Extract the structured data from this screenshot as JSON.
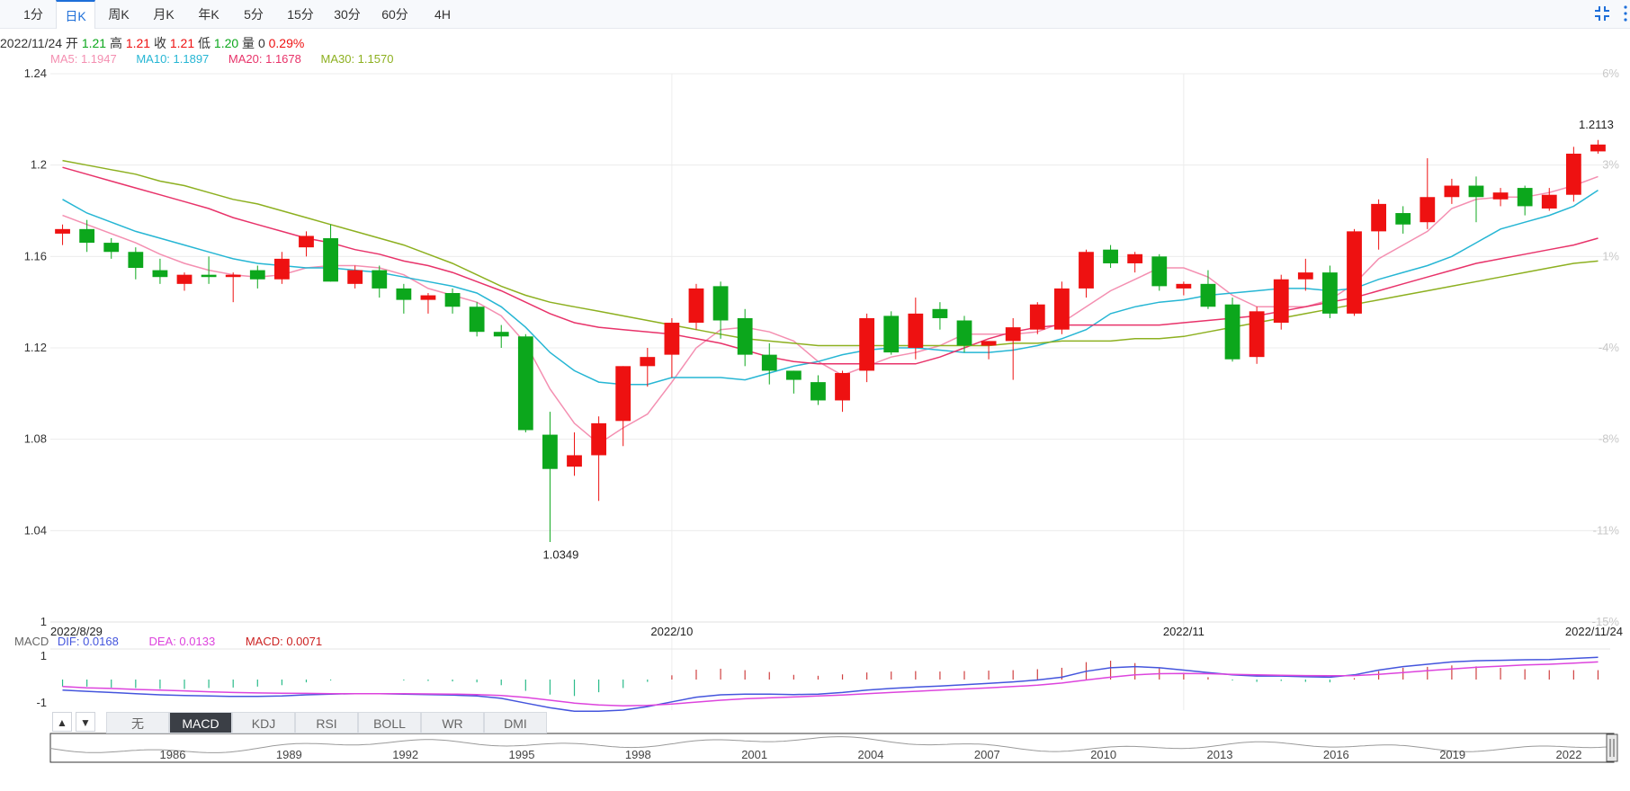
{
  "tabs": [
    {
      "label": "1分",
      "active": false
    },
    {
      "label": "日K",
      "active": true
    },
    {
      "label": "周K",
      "active": false
    },
    {
      "label": "月K",
      "active": false
    },
    {
      "label": "年K",
      "active": false
    },
    {
      "label": "5分",
      "active": false
    },
    {
      "label": "15分",
      "active": false
    },
    {
      "label": "30分",
      "active": false
    },
    {
      "label": "60分",
      "active": false
    },
    {
      "label": "4H",
      "active": false
    }
  ],
  "toolbar": {
    "fullscreen_icon": "compress-icon",
    "more_icon": "more-vertical-icon"
  },
  "info": {
    "date": "2022/11/24",
    "open_label": "开",
    "open": "1.21",
    "high_label": "高",
    "high": "1.21",
    "close_label": "收",
    "close": "1.21",
    "low_label": "低",
    "low": "1.20",
    "vol_label": "量",
    "vol": "0",
    "change": "0.29%"
  },
  "ma": [
    {
      "label": "MA5: 1.1947",
      "color": "#f48fb1"
    },
    {
      "label": "MA10: 1.1897",
      "color": "#26b6d4"
    },
    {
      "label": "MA20: 1.1678",
      "color": "#e8336a"
    },
    {
      "label": "MA30: 1.1570",
      "color": "#8db020"
    }
  ],
  "macd_legend": {
    "name": "MACD",
    "dif": "DIF: 0.0168",
    "dea": "DEA: 0.0133",
    "macd": "MACD: 0.0071"
  },
  "indicator_tabs": [
    {
      "label": "无",
      "active": false
    },
    {
      "label": "MACD",
      "active": true
    },
    {
      "label": "KDJ",
      "active": false
    },
    {
      "label": "RSI",
      "active": false
    },
    {
      "label": "BOLL",
      "active": false
    },
    {
      "label": "WR",
      "active": false
    },
    {
      "label": "DMI",
      "active": false
    }
  ],
  "arrows": {
    "up": "▲",
    "down": "▼"
  },
  "colors": {
    "up": "#ee1111",
    "down": "#0ca71c",
    "grid": "#ececec",
    "dif": "#4455dd",
    "dea": "#dd44dd"
  },
  "chart_data": [
    {
      "type": "candlestick",
      "ylim": [
        1.0,
        1.24
      ],
      "y_ticks": [
        "1.24",
        "1.2",
        "1.16",
        "1.12",
        "1.08",
        "1.04",
        "1"
      ],
      "y_tick_values": [
        1.24,
        1.2,
        1.16,
        1.12,
        1.08,
        1.04,
        1.0
      ],
      "pct_ticks": [
        "6%",
        "3%",
        "1%",
        "-4%",
        "-8%",
        "-11%",
        "-15%"
      ],
      "x_labels": [
        {
          "label": "2022/8/29",
          "index": 0
        },
        {
          "label": "2022/10",
          "index": 25
        },
        {
          "label": "2022/11",
          "index": 46
        },
        {
          "label": "2022/11/24",
          "index": 63
        }
      ],
      "annotations": [
        {
          "label": "1.0349",
          "index": 20,
          "value": 1.0349
        },
        {
          "label": "1.2113",
          "index": 63,
          "value": 1.2113
        }
      ],
      "ohlc": [
        [
          1.17,
          1.174,
          1.165,
          1.172
        ],
        [
          1.172,
          1.176,
          1.162,
          1.166
        ],
        [
          1.166,
          1.168,
          1.159,
          1.162
        ],
        [
          1.162,
          1.164,
          1.15,
          1.155
        ],
        [
          1.154,
          1.159,
          1.148,
          1.151
        ],
        [
          1.148,
          1.153,
          1.145,
          1.152
        ],
        [
          1.152,
          1.16,
          1.148,
          1.151
        ],
        [
          1.151,
          1.153,
          1.14,
          1.152
        ],
        [
          1.154,
          1.156,
          1.146,
          1.15
        ],
        [
          1.15,
          1.162,
          1.148,
          1.159
        ],
        [
          1.164,
          1.171,
          1.16,
          1.169
        ],
        [
          1.168,
          1.174,
          1.149,
          1.149
        ],
        [
          1.148,
          1.156,
          1.146,
          1.154
        ],
        [
          1.154,
          1.156,
          1.142,
          1.146
        ],
        [
          1.146,
          1.148,
          1.135,
          1.141
        ],
        [
          1.141,
          1.144,
          1.135,
          1.143
        ],
        [
          1.144,
          1.146,
          1.135,
          1.138
        ],
        [
          1.138,
          1.14,
          1.125,
          1.127
        ],
        [
          1.127,
          1.13,
          1.12,
          1.125
        ],
        [
          1.125,
          1.126,
          1.083,
          1.084
        ],
        [
          1.082,
          1.092,
          1.035,
          1.067
        ],
        [
          1.068,
          1.083,
          1.064,
          1.073
        ],
        [
          1.073,
          1.09,
          1.053,
          1.087
        ],
        [
          1.088,
          1.112,
          1.077,
          1.112
        ],
        [
          1.112,
          1.12,
          1.103,
          1.116
        ],
        [
          1.117,
          1.133,
          1.107,
          1.131
        ],
        [
          1.131,
          1.148,
          1.128,
          1.146
        ],
        [
          1.147,
          1.149,
          1.124,
          1.132
        ],
        [
          1.133,
          1.137,
          1.112,
          1.117
        ],
        [
          1.117,
          1.122,
          1.104,
          1.11
        ],
        [
          1.11,
          1.11,
          1.1,
          1.106
        ],
        [
          1.105,
          1.108,
          1.095,
          1.097
        ],
        [
          1.097,
          1.11,
          1.092,
          1.109
        ],
        [
          1.11,
          1.135,
          1.105,
          1.133
        ],
        [
          1.134,
          1.136,
          1.117,
          1.118
        ],
        [
          1.12,
          1.142,
          1.115,
          1.135
        ],
        [
          1.137,
          1.14,
          1.128,
          1.133
        ],
        [
          1.132,
          1.134,
          1.118,
          1.121
        ],
        [
          1.121,
          1.123,
          1.115,
          1.123
        ],
        [
          1.123,
          1.133,
          1.106,
          1.129
        ],
        [
          1.128,
          1.14,
          1.126,
          1.139
        ],
        [
          1.128,
          1.149,
          1.126,
          1.146
        ],
        [
          1.146,
          1.163,
          1.142,
          1.162
        ],
        [
          1.163,
          1.165,
          1.155,
          1.157
        ],
        [
          1.157,
          1.162,
          1.153,
          1.161
        ],
        [
          1.16,
          1.161,
          1.145,
          1.147
        ],
        [
          1.146,
          1.149,
          1.143,
          1.148
        ],
        [
          1.148,
          1.154,
          1.137,
          1.138
        ],
        [
          1.139,
          1.142,
          1.114,
          1.115
        ],
        [
          1.116,
          1.138,
          1.113,
          1.136
        ],
        [
          1.131,
          1.152,
          1.128,
          1.15
        ],
        [
          1.15,
          1.159,
          1.145,
          1.153
        ],
        [
          1.153,
          1.156,
          1.133,
          1.135
        ],
        [
          1.135,
          1.172,
          1.134,
          1.171
        ],
        [
          1.171,
          1.185,
          1.163,
          1.183
        ],
        [
          1.179,
          1.182,
          1.17,
          1.174
        ],
        [
          1.175,
          1.203,
          1.172,
          1.186
        ],
        [
          1.186,
          1.194,
          1.183,
          1.191
        ],
        [
          1.191,
          1.195,
          1.175,
          1.186
        ],
        [
          1.185,
          1.19,
          1.182,
          1.188
        ],
        [
          1.19,
          1.191,
          1.178,
          1.182
        ],
        [
          1.181,
          1.19,
          1.18,
          1.187
        ],
        [
          1.187,
          1.208,
          1.184,
          1.205
        ],
        [
          1.206,
          1.211,
          1.205,
          1.209
        ]
      ],
      "series": [
        {
          "name": "MA5",
          "values": [
            1.178,
            1.174,
            1.17,
            1.166,
            1.161,
            1.157,
            1.154,
            1.152,
            1.151,
            1.152,
            1.155,
            1.156,
            1.156,
            1.155,
            1.152,
            1.146,
            1.143,
            1.14,
            1.134,
            1.122,
            1.102,
            1.087,
            1.078,
            1.085,
            1.091,
            1.105,
            1.12,
            1.128,
            1.129,
            1.127,
            1.123,
            1.114,
            1.108,
            1.112,
            1.116,
            1.118,
            1.121,
            1.126,
            1.126,
            1.126,
            1.127,
            1.131,
            1.138,
            1.145,
            1.15,
            1.155,
            1.155,
            1.151,
            1.143,
            1.138,
            1.138,
            1.138,
            1.141,
            1.148,
            1.159,
            1.165,
            1.171,
            1.181,
            1.185,
            1.186,
            1.186,
            1.188,
            1.191,
            1.195
          ]
        },
        {
          "name": "MA10",
          "values": [
            1.185,
            1.179,
            1.175,
            1.171,
            1.168,
            1.165,
            1.162,
            1.159,
            1.157,
            1.156,
            1.155,
            1.155,
            1.154,
            1.153,
            1.151,
            1.149,
            1.147,
            1.144,
            1.138,
            1.129,
            1.118,
            1.11,
            1.105,
            1.104,
            1.104,
            1.107,
            1.107,
            1.107,
            1.106,
            1.109,
            1.112,
            1.114,
            1.117,
            1.119,
            1.12,
            1.12,
            1.119,
            1.118,
            1.118,
            1.119,
            1.121,
            1.124,
            1.128,
            1.135,
            1.138,
            1.14,
            1.141,
            1.143,
            1.144,
            1.145,
            1.146,
            1.146,
            1.145,
            1.146,
            1.15,
            1.153,
            1.156,
            1.16,
            1.166,
            1.172,
            1.175,
            1.178,
            1.182,
            1.189
          ]
        },
        {
          "name": "MA20",
          "values": [
            1.199,
            1.196,
            1.193,
            1.19,
            1.187,
            1.184,
            1.181,
            1.177,
            1.174,
            1.171,
            1.168,
            1.166,
            1.163,
            1.161,
            1.158,
            1.156,
            1.153,
            1.149,
            1.145,
            1.14,
            1.135,
            1.131,
            1.129,
            1.128,
            1.127,
            1.126,
            1.124,
            1.122,
            1.119,
            1.116,
            1.114,
            1.113,
            1.113,
            1.113,
            1.113,
            1.113,
            1.116,
            1.12,
            1.124,
            1.127,
            1.129,
            1.13,
            1.13,
            1.13,
            1.13,
            1.13,
            1.131,
            1.132,
            1.133,
            1.134,
            1.136,
            1.138,
            1.14,
            1.142,
            1.145,
            1.148,
            1.151,
            1.154,
            1.157,
            1.159,
            1.161,
            1.163,
            1.165,
            1.168
          ]
        },
        {
          "name": "MA30",
          "values": [
            1.202,
            1.2,
            1.198,
            1.196,
            1.193,
            1.191,
            1.188,
            1.185,
            1.183,
            1.18,
            1.177,
            1.174,
            1.171,
            1.168,
            1.165,
            1.161,
            1.157,
            1.152,
            1.147,
            1.143,
            1.14,
            1.138,
            1.136,
            1.134,
            1.132,
            1.13,
            1.128,
            1.126,
            1.124,
            1.123,
            1.122,
            1.121,
            1.121,
            1.121,
            1.121,
            1.121,
            1.121,
            1.121,
            1.121,
            1.122,
            1.122,
            1.123,
            1.123,
            1.123,
            1.124,
            1.124,
            1.125,
            1.127,
            1.129,
            1.131,
            1.133,
            1.135,
            1.137,
            1.139,
            1.141,
            1.143,
            1.145,
            1.147,
            1.149,
            1.151,
            1.153,
            1.155,
            1.157,
            1.158
          ]
        }
      ]
    },
    {
      "type": "bar+line",
      "name": "MACD",
      "ylim": [
        -1.3,
        1.3
      ],
      "y_ticks": [
        "1",
        "-1"
      ],
      "y_tick_values": [
        1,
        -1
      ],
      "series": [
        {
          "name": "DIF",
          "values": [
            -0.45,
            -0.5,
            -0.55,
            -0.6,
            -0.65,
            -0.68,
            -0.7,
            -0.72,
            -0.72,
            -0.7,
            -0.65,
            -0.62,
            -0.6,
            -0.6,
            -0.62,
            -0.64,
            -0.66,
            -0.7,
            -0.8,
            -1.0,
            -1.2,
            -1.35,
            -1.35,
            -1.3,
            -1.15,
            -0.95,
            -0.75,
            -0.65,
            -0.62,
            -0.62,
            -0.64,
            -0.62,
            -0.55,
            -0.45,
            -0.38,
            -0.32,
            -0.28,
            -0.22,
            -0.16,
            -0.1,
            -0.02,
            0.1,
            0.35,
            0.5,
            0.55,
            0.5,
            0.4,
            0.3,
            0.2,
            0.15,
            0.15,
            0.12,
            0.1,
            0.2,
            0.4,
            0.55,
            0.65,
            0.75,
            0.8,
            0.82,
            0.84,
            0.85,
            0.9,
            0.95
          ]
        },
        {
          "name": "DEA",
          "values": [
            -0.3,
            -0.35,
            -0.38,
            -0.42,
            -0.45,
            -0.48,
            -0.52,
            -0.55,
            -0.57,
            -0.58,
            -0.59,
            -0.6,
            -0.6,
            -0.6,
            -0.6,
            -0.61,
            -0.62,
            -0.64,
            -0.68,
            -0.76,
            -0.88,
            -1.0,
            -1.08,
            -1.12,
            -1.1,
            -1.04,
            -0.96,
            -0.88,
            -0.82,
            -0.78,
            -0.74,
            -0.7,
            -0.66,
            -0.6,
            -0.55,
            -0.5,
            -0.45,
            -0.4,
            -0.35,
            -0.3,
            -0.24,
            -0.15,
            -0.02,
            0.1,
            0.2,
            0.25,
            0.26,
            0.25,
            0.22,
            0.2,
            0.18,
            0.17,
            0.16,
            0.17,
            0.22,
            0.3,
            0.38,
            0.45,
            0.52,
            0.57,
            0.62,
            0.65,
            0.7,
            0.75
          ]
        },
        {
          "name": "MACD",
          "values": [
            -0.3,
            -0.3,
            -0.34,
            -0.36,
            -0.4,
            -0.4,
            -0.36,
            -0.34,
            -0.3,
            -0.24,
            -0.12,
            -0.04,
            0.0,
            0.0,
            -0.04,
            -0.06,
            -0.08,
            -0.12,
            -0.24,
            -0.48,
            -0.64,
            -0.7,
            -0.54,
            -0.36,
            -0.1,
            0.18,
            0.42,
            0.46,
            0.4,
            0.32,
            0.2,
            0.16,
            0.22,
            0.3,
            0.34,
            0.36,
            0.34,
            0.36,
            0.38,
            0.4,
            0.44,
            0.5,
            0.74,
            0.8,
            0.7,
            0.5,
            0.28,
            0.1,
            -0.04,
            -0.1,
            -0.06,
            -0.1,
            -0.12,
            0.06,
            0.36,
            0.5,
            0.54,
            0.6,
            0.56,
            0.5,
            0.44,
            0.4,
            0.4,
            0.4
          ]
        }
      ]
    },
    {
      "type": "area",
      "name": "navigator",
      "x_labels": [
        "1986",
        "1989",
        "1992",
        "1995",
        "1998",
        "2001",
        "2004",
        "2007",
        "2010",
        "2013",
        "2016",
        "2019",
        "2022"
      ]
    }
  ]
}
